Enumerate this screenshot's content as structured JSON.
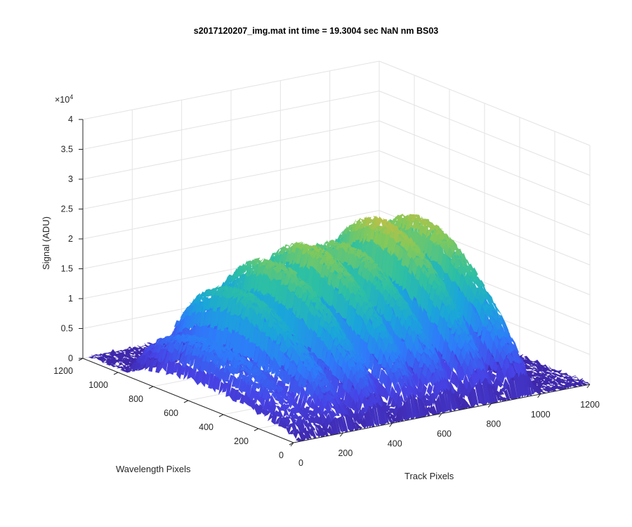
{
  "chart_data": {
    "type": "surface",
    "title": "s2017120207_img.mat int time = 19.3004 sec  NaN nm BS03",
    "xlabel": "Track Pixels",
    "ylabel": "Wavelength Pixels",
    "zlabel": "Signal (ADU)",
    "z_exponent_label": "×10",
    "z_exponent_power": "4",
    "xlim": [
      0,
      1200
    ],
    "ylim": [
      0,
      1200
    ],
    "zlim": [
      0,
      4
    ],
    "z_scale": 10000,
    "x_ticks": [
      "0",
      "200",
      "400",
      "600",
      "800",
      "1000",
      "1200"
    ],
    "y_ticks": [
      "0",
      "200",
      "400",
      "600",
      "800",
      "1000",
      "1200"
    ],
    "z_ticks": [
      "0",
      "0.5",
      "1",
      "1.5",
      "2",
      "2.5",
      "3",
      "3.5",
      "4"
    ],
    "grid": true,
    "colormap": [
      "#3e26a8",
      "#4743e6",
      "#2e7bfa",
      "#1aa6d9",
      "#2ec0a2",
      "#84c95a",
      "#e0b93b",
      "#f9d924"
    ],
    "tracks": [
      {
        "track_center": 80,
        "peak_signal": 1.15
      },
      {
        "track_center": 205,
        "peak_signal": 2.1
      },
      {
        "track_center": 345,
        "peak_signal": 2.55
      },
      {
        "track_center": 495,
        "peak_signal": 2.75
      },
      {
        "track_center": 630,
        "peak_signal": 2.65
      },
      {
        "track_center": 780,
        "peak_signal": 3.0
      },
      {
        "track_center": 930,
        "peak_signal": 2.9
      }
    ],
    "track_width": 55,
    "wavelength_range": [
      0,
      1000
    ]
  }
}
